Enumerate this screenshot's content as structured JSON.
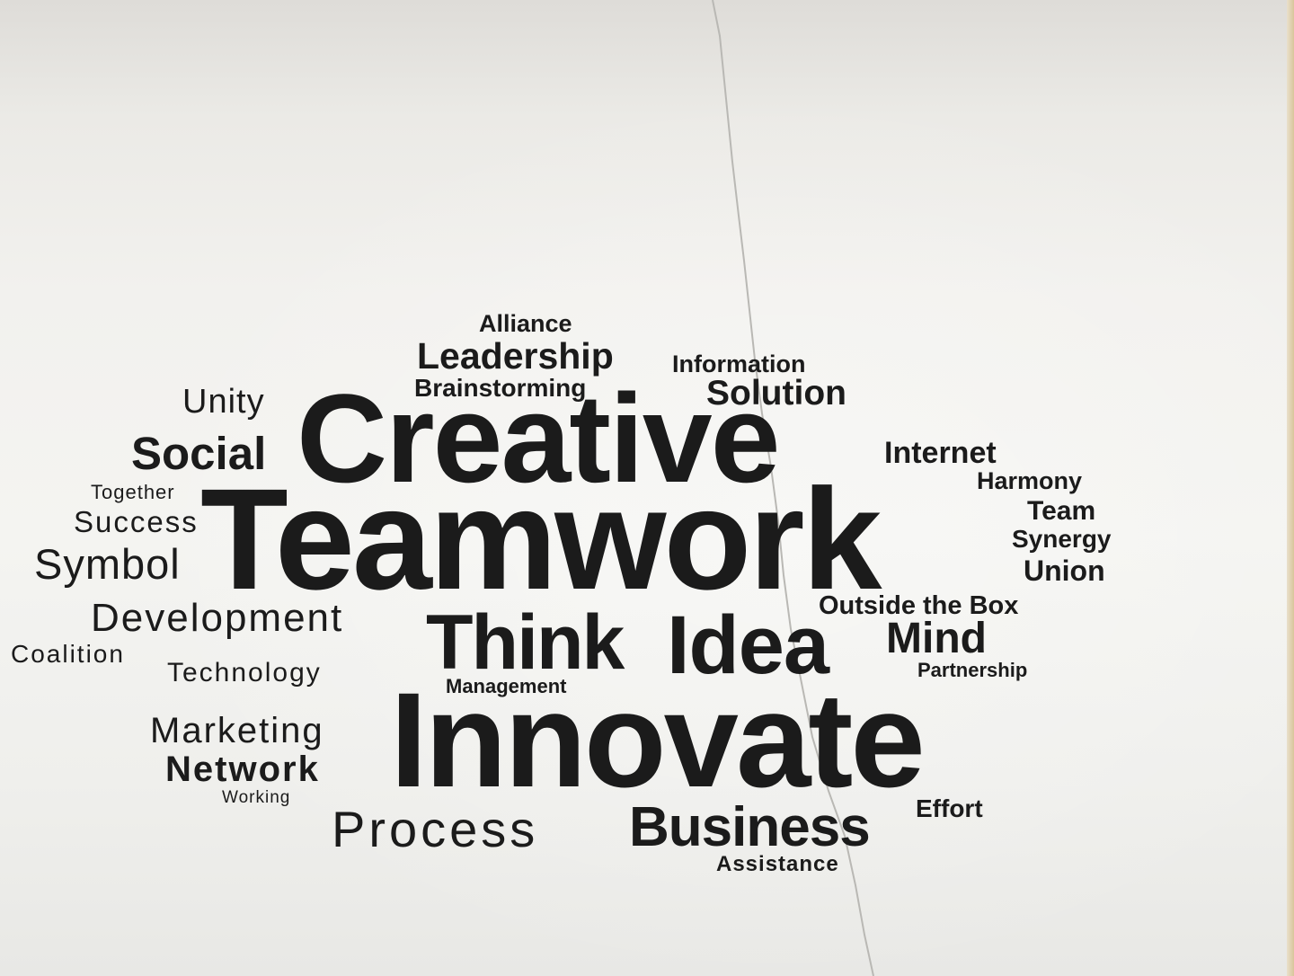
{
  "word_cloud": {
    "creative": "Creative",
    "teamwork": "Teamwork",
    "innovate": "Innovate",
    "think": "Think",
    "idea": "Idea",
    "alliance": "Alliance",
    "leadership": "Leadership",
    "brainstorming": "Brainstorming",
    "information": "Information",
    "solution": "Solution",
    "unity": "Unity",
    "social": "Social",
    "together": "Together",
    "success": "Success",
    "symbol": "Symbol",
    "development": "Development",
    "coalition": "Coalition",
    "technology": "Technology",
    "marketing": "Marketing",
    "network": "Network",
    "working": "Working",
    "management": "Management",
    "process": "Process",
    "business": "Business",
    "assistance": "Assistance",
    "effort": "Effort",
    "internet": "Internet",
    "harmony": "Harmony",
    "team": "Team",
    "synergy": "Synergy",
    "union": "Union",
    "outside_the_box": "Outside the Box",
    "mind": "Mind",
    "partnership": "Partnership"
  },
  "colors": {
    "ink": "#1b1b1b",
    "wall": "#f2f1ee"
  }
}
